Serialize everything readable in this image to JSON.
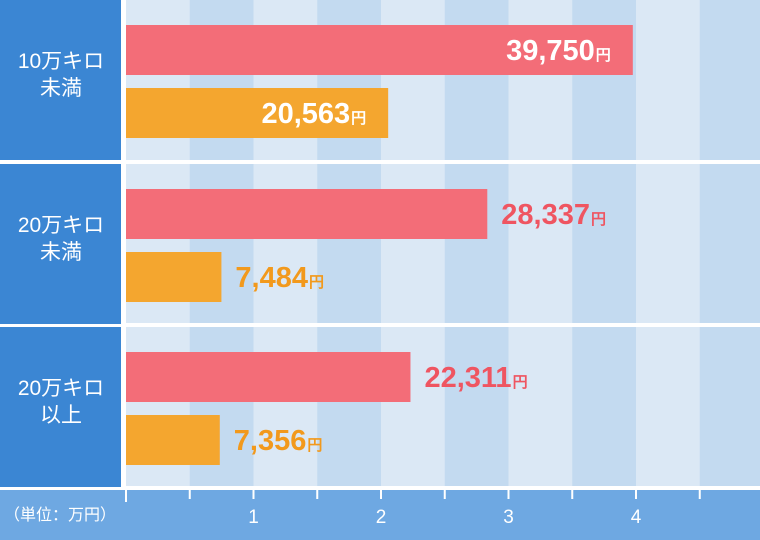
{
  "chart_data": {
    "type": "bar",
    "orientation": "horizontal",
    "categories": [
      [
        "10万キロ",
        "未満"
      ],
      [
        "20万キロ",
        "未満"
      ],
      [
        "20万キロ",
        "以上"
      ]
    ],
    "series": [
      {
        "values": [
          39750,
          28337,
          22311
        ],
        "color": "#f36d78",
        "label_color": "#ef5561"
      },
      {
        "values": [
          20563,
          7484,
          7356
        ],
        "color": "#f4a62f",
        "label_color": "#f2991c"
      }
    ],
    "data_labels": [
      [
        "39,750",
        "28,337",
        "22,311"
      ],
      [
        "20,563",
        "7,484",
        "7,356"
      ]
    ],
    "value_unit": "円",
    "unit_label": "（単位：万円）",
    "x_ticks": [
      "1",
      "2",
      "3",
      "4"
    ],
    "xlim": [
      0,
      5
    ],
    "grid": "alternating vertical bands at half-unit intervals",
    "colors": {
      "category_panel": "#3b86d3",
      "axis_bar": "#6ea8e2",
      "band_light": "#dbe8f5",
      "band_dark": "#c3daf0"
    }
  }
}
